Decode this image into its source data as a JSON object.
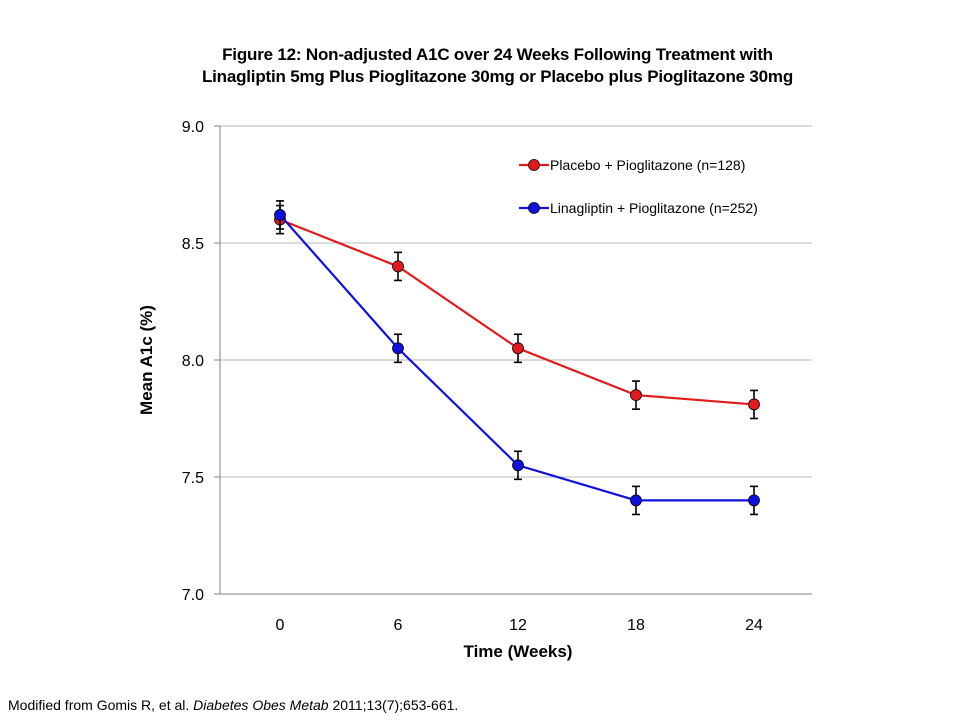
{
  "chart_data": {
    "type": "line",
    "title_lines": [
      "Figure 12: Non-adjusted A1C over 24 Weeks Following Treatment with",
      "Linagliptin 5mg Plus Pioglitazone 30mg or Placebo plus Pioglitazone 30mg"
    ],
    "xlabel": "Time (Weeks)",
    "ylabel": "Mean A1c (%)",
    "x": [
      0,
      6,
      12,
      18,
      24
    ],
    "x_tick_labels": [
      "0",
      "6",
      "12",
      "18",
      "24"
    ],
    "ylim": [
      7.0,
      9.0
    ],
    "y_ticks": [
      7.0,
      7.5,
      8.0,
      8.5,
      9.0
    ],
    "y_tick_labels": [
      "7.0",
      "7.5",
      "8.0",
      "8.5",
      "9.0"
    ],
    "grid": "horizontal",
    "legend_position": "top-right",
    "series": [
      {
        "name": "Placebo + Pioglitazone (n=128)",
        "color": "#e31a1c",
        "values": [
          8.6,
          8.4,
          8.05,
          7.85,
          7.81
        ],
        "error": [
          0.06,
          0.06,
          0.06,
          0.06,
          0.06
        ]
      },
      {
        "name": "Linagliptin + Pioglitazone (n=252)",
        "color": "#1010e0",
        "values": [
          8.62,
          8.05,
          7.55,
          7.4,
          7.4
        ],
        "error": [
          0.06,
          0.06,
          0.06,
          0.06,
          0.06
        ]
      }
    ]
  },
  "citation": {
    "prefix": "Modified from Gomis R, et al. ",
    "journal": "Diabetes Obes Metab",
    "suffix": " 2011;13(7);653-661."
  }
}
